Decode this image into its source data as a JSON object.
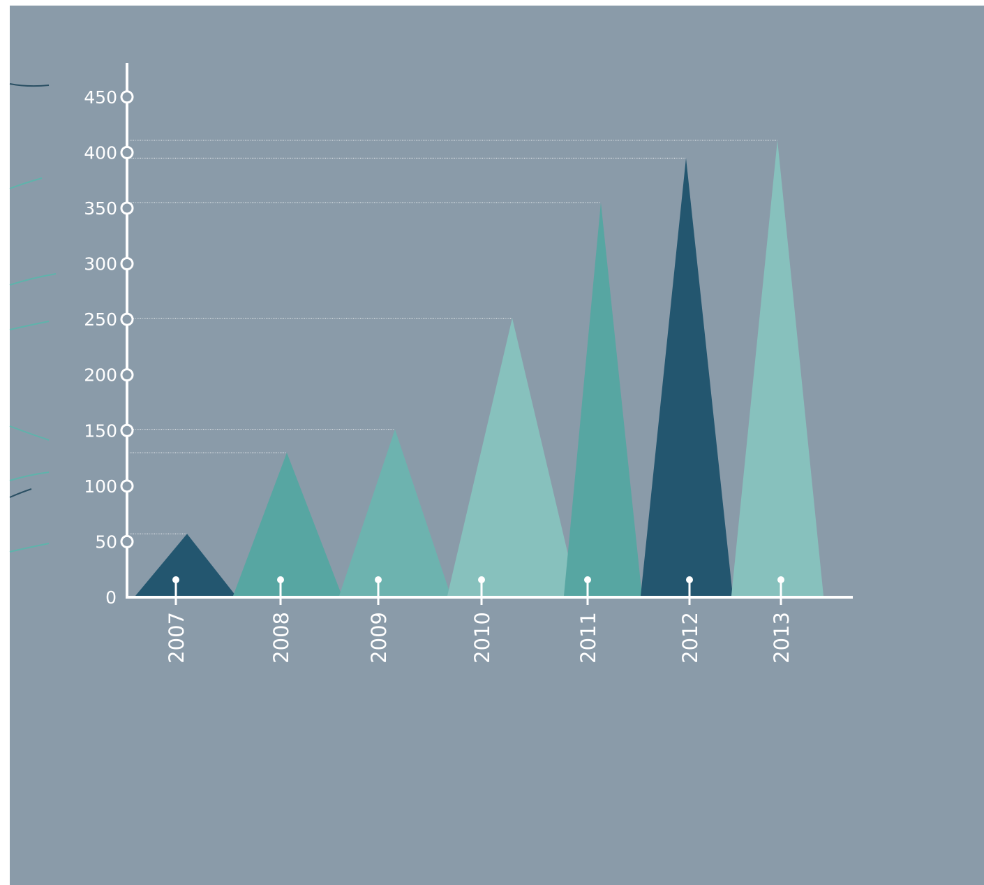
{
  "colors": {
    "background": "#8a9ba9",
    "axis": "#ffffff",
    "dark": "#23566f",
    "medium": "#57a6a2",
    "mid_light": "#6db3af",
    "light": "#87c1bd",
    "decor_dark": "#2a4f63",
    "decor_teal": "#5fb3ab"
  },
  "chart_data": {
    "type": "area",
    "title": "",
    "xlabel": "",
    "ylabel": "",
    "categories": [
      "2007",
      "2008",
      "2009",
      "2010",
      "2011",
      "2012",
      "2013"
    ],
    "values": [
      57,
      130,
      151,
      251,
      355,
      395,
      411
    ],
    "bar_colors": [
      "dark",
      "medium",
      "mid_light",
      "light",
      "medium",
      "dark",
      "light"
    ],
    "yticks": [
      0,
      50,
      100,
      150,
      200,
      250,
      300,
      350,
      400,
      450
    ],
    "ylim": [
      0,
      470
    ],
    "grid": false,
    "legend": "none"
  }
}
